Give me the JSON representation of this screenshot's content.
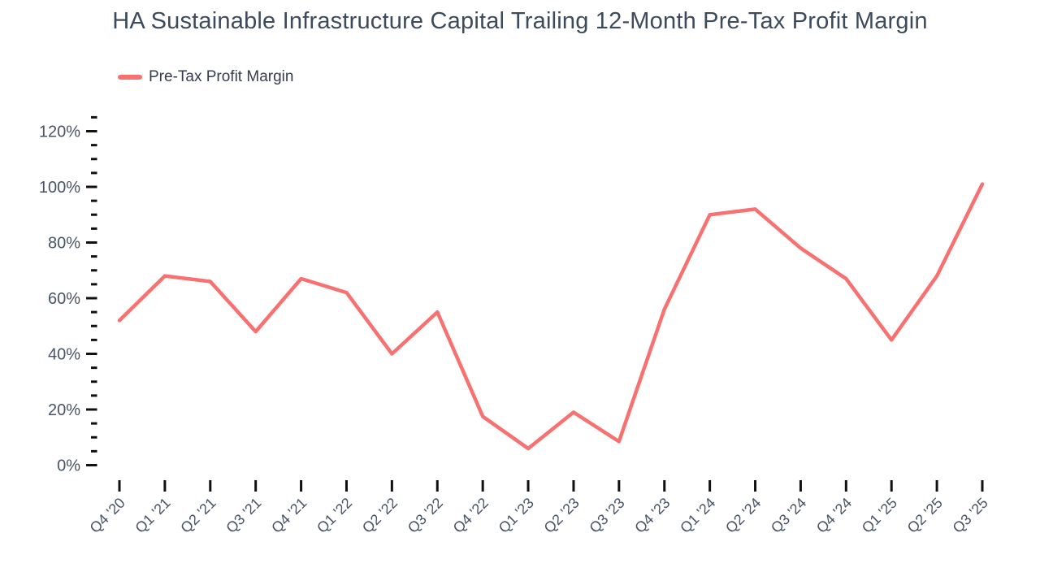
{
  "title": "HA Sustainable Infrastructure Capital Trailing 12-Month Pre-Tax Profit Margin",
  "legend": {
    "label": "Pre-Tax Profit Margin"
  },
  "colors": {
    "line": "#F87171",
    "title_text": "#3d4a5c",
    "axis_label_text": "#475467",
    "tick_mark": "#111111"
  },
  "chart_data": {
    "type": "line",
    "title": "HA Sustainable Infrastructure Capital Trailing 12-Month Pre-Tax Profit Margin",
    "xlabel": "",
    "ylabel": "",
    "y_unit": "%",
    "grid": false,
    "legend_position": "top-left",
    "ylim": [
      0,
      125
    ],
    "yticks_major": [
      0,
      20,
      40,
      60,
      80,
      100,
      120
    ],
    "ytick_labels": [
      "0%",
      "20%",
      "40%",
      "60%",
      "80%",
      "100%",
      "120%"
    ],
    "y_minor_step": 5,
    "categories": [
      "Q4 '20",
      "Q1 '21",
      "Q2 '21",
      "Q3 '21",
      "Q4 '21",
      "Q1 '22",
      "Q2 '22",
      "Q3 '22",
      "Q4 '22",
      "Q1 '23",
      "Q2 '23",
      "Q3 '23",
      "Q4 '23",
      "Q1 '24",
      "Q2 '24",
      "Q3 '24",
      "Q4 '24",
      "Q1 '25",
      "Q2 '25",
      "Q3 '25"
    ],
    "series": [
      {
        "name": "Pre-Tax Profit Margin",
        "color": "#F87171",
        "values": [
          52,
          68,
          66,
          48,
          67,
          62,
          40,
          55,
          17.5,
          6,
          19,
          8.5,
          56,
          90,
          92,
          78,
          67,
          45,
          68,
          101
        ]
      }
    ]
  }
}
